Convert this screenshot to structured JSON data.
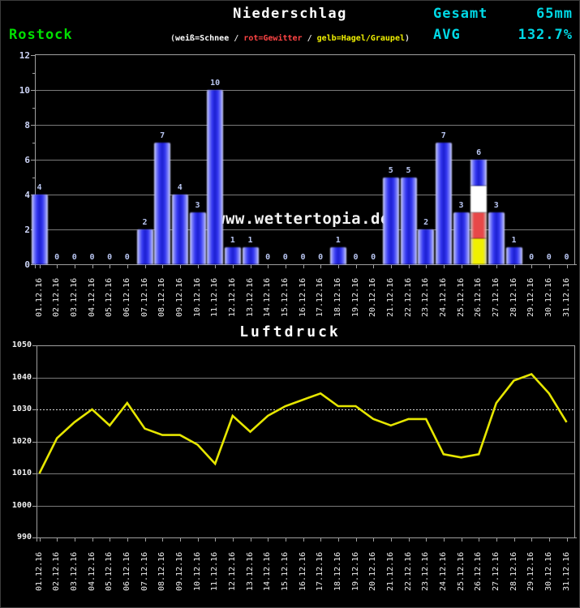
{
  "header": {
    "title": "Niederschlag",
    "station": "Rostock",
    "total_label": "Gesamt",
    "total_value": "65mm",
    "avg_label": "AVG",
    "avg_value": "132.7%",
    "legend": {
      "open": "(",
      "snow": "weiß=Schnee",
      "sep1": " / ",
      "thunder": "rot=Gewitter",
      "sep2": " / ",
      "hail": "gelb=Hagel/Graupel",
      "close": ")"
    }
  },
  "watermark": "www.wettertopia.de",
  "colors": {
    "background": "#000000",
    "accent_cyan": "#00d9e6",
    "station_green": "#00e000",
    "snow_white": "#ffffff",
    "thunder_red": "#ff4444",
    "hail_yellow": "#f0f000",
    "bar_blue": "#2a2df0",
    "bar_value_label": "#b9c6f2",
    "line_yellow": "#e6e600",
    "grid_gray": "#7a7a7a",
    "axis_gray": "#a0a0a0"
  },
  "chart_data": [
    {
      "type": "bar",
      "title": "Niederschlag",
      "unit": "mm",
      "categories": [
        "01.12.16",
        "02.12.16",
        "03.12.16",
        "04.12.16",
        "05.12.16",
        "06.12.16",
        "07.12.16",
        "08.12.16",
        "09.12.16",
        "10.12.16",
        "11.12.16",
        "12.12.16",
        "13.12.16",
        "14.12.16",
        "15.12.16",
        "16.12.16",
        "17.12.16",
        "18.12.16",
        "19.12.16",
        "20.12.16",
        "21.12.16",
        "22.12.16",
        "23.12.16",
        "24.12.16",
        "25.12.16",
        "26.12.16",
        "27.12.16",
        "28.12.16",
        "29.12.16",
        "30.12.16",
        "31.12.16"
      ],
      "values": [
        4,
        0,
        0,
        0,
        0,
        0,
        2,
        7,
        4,
        3,
        10,
        1,
        1,
        0,
        0,
        0,
        0,
        1,
        0,
        0,
        5,
        5,
        2,
        7,
        3,
        6,
        3,
        1,
        0,
        0,
        0
      ],
      "ylim": [
        0,
        12
      ],
      "yticks": [
        0,
        2,
        4,
        6,
        8,
        10,
        12
      ],
      "grid": true,
      "total": "65mm",
      "avg_percent": "132.7%",
      "special_bar": {
        "category": "26.12.16",
        "index": 25,
        "total": 6,
        "segments_bottom_to_top": [
          {
            "legend": "gelb=Hagel/Graupel",
            "color": "#f0f000",
            "value": 1.5
          },
          {
            "legend": "rot=Gewitter",
            "color": "#e84848",
            "value": 1.5
          },
          {
            "legend": "weiß=Schnee",
            "color": "#ffffff",
            "value": 1.5
          },
          {
            "legend": "Regen",
            "color": "#2a2df0",
            "value": 1.5
          }
        ]
      }
    },
    {
      "type": "line",
      "title": "Luftdruck",
      "x": [
        "01.12.16",
        "02.12.16",
        "03.12.16",
        "04.12.16",
        "05.12.16",
        "06.12.16",
        "07.12.16",
        "08.12.16",
        "09.12.16",
        "10.12.16",
        "11.12.16",
        "12.12.16",
        "13.12.16",
        "14.12.16",
        "15.12.16",
        "16.12.16",
        "17.12.16",
        "18.12.16",
        "19.12.16",
        "20.12.16",
        "21.12.16",
        "22.12.16",
        "23.12.16",
        "24.12.16",
        "25.12.16",
        "26.12.16",
        "27.12.16",
        "28.12.16",
        "29.12.16",
        "30.12.16",
        "31.12.16"
      ],
      "values": [
        1010,
        1021,
        1026,
        1030,
        1025,
        1032,
        1024,
        1022,
        1022,
        1019,
        1013,
        1028,
        1023,
        1028,
        1031,
        1033,
        1035,
        1031,
        1031,
        1027,
        1025,
        1027,
        1027,
        1016,
        1015,
        1016,
        1032,
        1039,
        1041,
        1035,
        1026
      ],
      "ylim": [
        990,
        1050
      ],
      "yticks": [
        990,
        1000,
        1010,
        1020,
        1030,
        1040,
        1050
      ],
      "dotted_gridline_at": 1030,
      "grid": true,
      "legend_position": "none"
    }
  ]
}
